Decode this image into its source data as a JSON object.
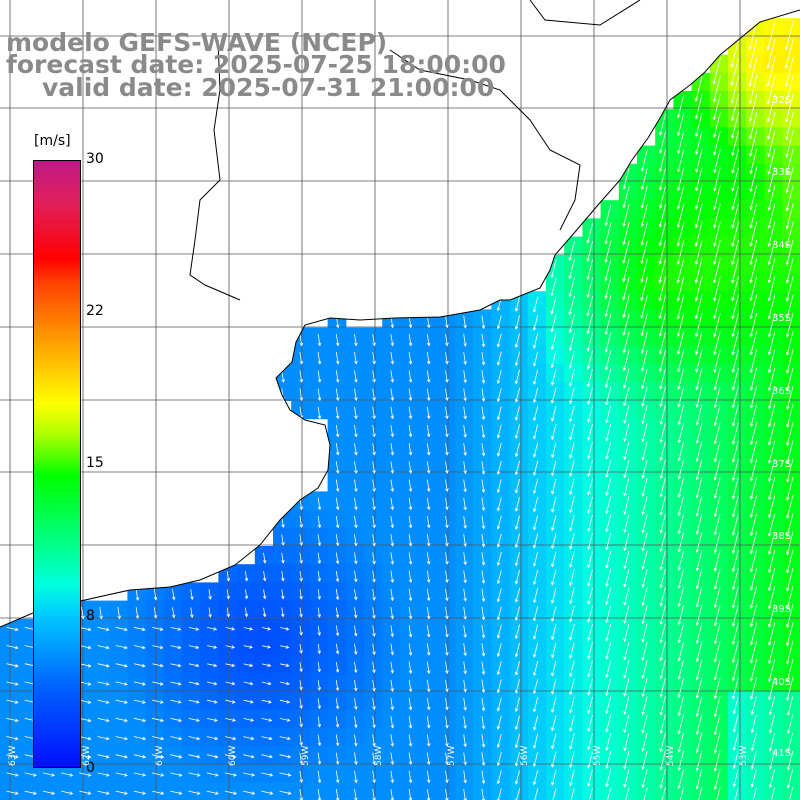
{
  "header": {
    "line1": "modelo GEFS-WAVE (NCEP)",
    "line2": "forecast date: 2025-07-25 18:00:00",
    "line3": "valid date: 2025-07-31 21:00:00"
  },
  "colorbar": {
    "unit": "[m/s]",
    "ticks": [
      "30",
      "22",
      "15",
      "8",
      "0"
    ],
    "range": [
      0,
      30
    ],
    "colors": [
      "#0010ff",
      "#00c8ff",
      "#00ff00",
      "#ffff00",
      "#ff0000",
      "#c01888"
    ]
  },
  "map": {
    "land_color": "#ffffff",
    "coast_color": "#000000",
    "grid_color": "#555555",
    "arrow_color": "#ffffff",
    "lat_labels": [
      "32S",
      "33S",
      "34S",
      "35S",
      "36S",
      "37S",
      "38S",
      "39S",
      "40S",
      "41S"
    ],
    "lon_labels": [
      "63W",
      "62W",
      "61W",
      "60W",
      "59W",
      "58W",
      "57W",
      "56W",
      "55W",
      "54W",
      "53W"
    ]
  }
}
